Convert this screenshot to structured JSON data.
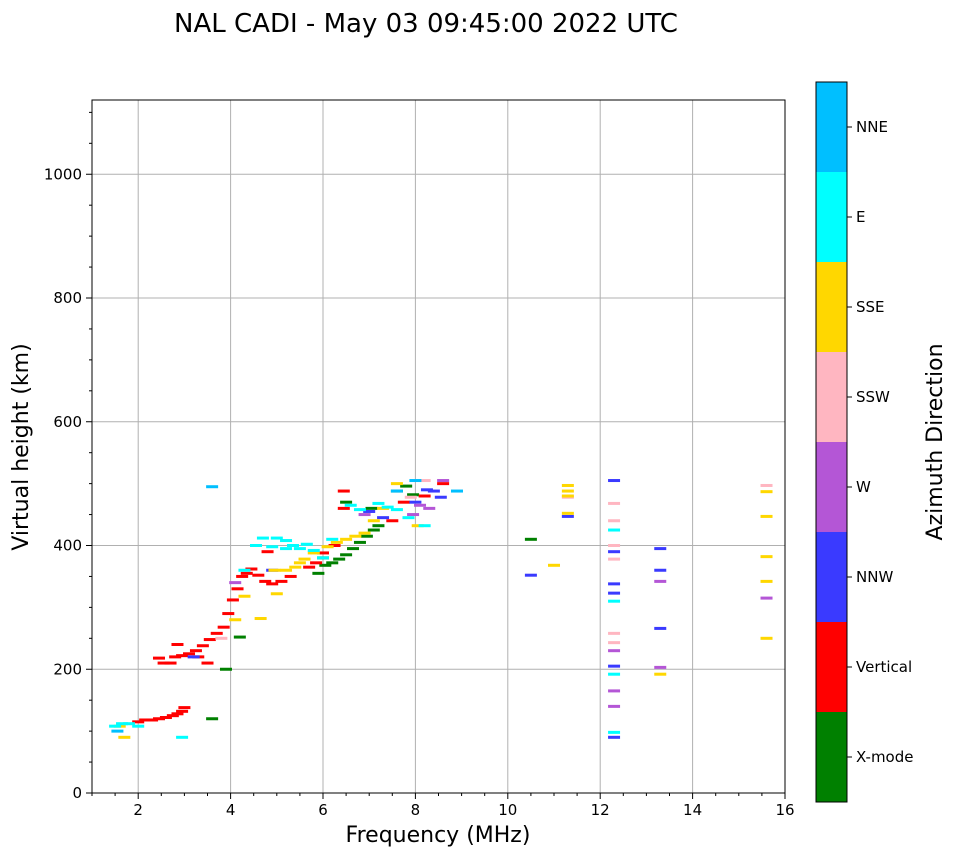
{
  "chart_data": {
    "type": "scatter",
    "title": "NAL CADI - May 03 09:45:00 2022 UTC",
    "xlabel": "Frequency (MHz)",
    "ylabel": "Virtual height (km)",
    "xlim": [
      1,
      16
    ],
    "ylim": [
      0,
      1120
    ],
    "xticks": [
      2,
      4,
      6,
      8,
      10,
      12,
      14,
      16
    ],
    "yticks": [
      0,
      200,
      400,
      600,
      800,
      1000
    ],
    "grid": true,
    "colorbar": {
      "label": "Azimuth Direction",
      "categories": [
        {
          "name": "X-mode",
          "color": "#008000"
        },
        {
          "name": "Vertical",
          "color": "#ff0000"
        },
        {
          "name": "NNW",
          "color": "#3a3aff"
        },
        {
          "name": "W",
          "color": "#b456d6"
        },
        {
          "name": "SSW",
          "color": "#ffb6c1"
        },
        {
          "name": "SSE",
          "color": "#ffd700"
        },
        {
          "name": "E",
          "color": "#00ffff"
        },
        {
          "name": "NNE",
          "color": "#00bfff"
        }
      ]
    },
    "series": [
      {
        "name": "X-mode",
        "points": [
          [
            3.6,
            120
          ],
          [
            4.2,
            252
          ],
          [
            3.9,
            200
          ],
          [
            5.9,
            355
          ],
          [
            6.05,
            368
          ],
          [
            6.2,
            372
          ],
          [
            6.35,
            378
          ],
          [
            6.5,
            385
          ],
          [
            6.65,
            395
          ],
          [
            6.8,
            405
          ],
          [
            6.95,
            415
          ],
          [
            7.1,
            425
          ],
          [
            7.2,
            432
          ],
          [
            7.05,
            460
          ],
          [
            7.6,
            488
          ],
          [
            7.8,
            496
          ],
          [
            6.5,
            470
          ],
          [
            7.95,
            482
          ],
          [
            10.5,
            410
          ],
          [
            6.0,
            380
          ]
        ]
      },
      {
        "name": "Vertical",
        "points": [
          [
            2.0,
            115
          ],
          [
            2.15,
            118
          ],
          [
            2.3,
            118
          ],
          [
            2.45,
            120
          ],
          [
            2.6,
            122
          ],
          [
            2.75,
            125
          ],
          [
            2.85,
            128
          ],
          [
            2.95,
            132
          ],
          [
            3.0,
            138
          ],
          [
            2.45,
            218
          ],
          [
            2.55,
            210
          ],
          [
            2.7,
            210
          ],
          [
            2.8,
            220
          ],
          [
            2.85,
            240
          ],
          [
            2.95,
            222
          ],
          [
            3.1,
            225
          ],
          [
            3.25,
            230
          ],
          [
            3.4,
            238
          ],
          [
            3.55,
            248
          ],
          [
            3.7,
            258
          ],
          [
            3.85,
            268
          ],
          [
            3.95,
            290
          ],
          [
            4.05,
            312
          ],
          [
            4.15,
            330
          ],
          [
            4.25,
            350
          ],
          [
            4.35,
            355
          ],
          [
            4.45,
            362
          ],
          [
            4.6,
            352
          ],
          [
            4.75,
            342
          ],
          [
            4.9,
            338
          ],
          [
            5.1,
            342
          ],
          [
            5.3,
            350
          ],
          [
            4.8,
            390
          ],
          [
            5.7,
            365
          ],
          [
            5.85,
            372
          ],
          [
            6.0,
            388
          ],
          [
            6.25,
            400
          ],
          [
            6.45,
            460
          ],
          [
            6.45,
            488
          ],
          [
            7.5,
            440
          ],
          [
            7.75,
            470
          ],
          [
            8.6,
            500
          ],
          [
            8.2,
            480
          ],
          [
            3.5,
            210
          ],
          [
            3.3,
            220
          ]
        ]
      },
      {
        "name": "NNW",
        "points": [
          [
            3.2,
            220
          ],
          [
            8.25,
            490
          ],
          [
            8.4,
            488
          ],
          [
            8.55,
            478
          ],
          [
            7.0,
            455
          ],
          [
            7.3,
            445
          ],
          [
            8.0,
            470
          ],
          [
            12.3,
            505
          ],
          [
            12.3,
            390
          ],
          [
            12.3,
            338
          ],
          [
            12.3,
            323
          ],
          [
            12.3,
            205
          ],
          [
            12.3,
            90
          ],
          [
            13.3,
            395
          ],
          [
            13.3,
            360
          ],
          [
            13.3,
            266
          ],
          [
            11.3,
            447
          ],
          [
            10.5,
            352
          ],
          [
            4.9,
            360
          ]
        ]
      },
      {
        "name": "W",
        "points": [
          [
            8.1,
            465
          ],
          [
            8.3,
            460
          ],
          [
            7.95,
            450
          ],
          [
            8.6,
            505
          ],
          [
            6.9,
            450
          ],
          [
            12.3,
            230
          ],
          [
            12.3,
            165
          ],
          [
            12.3,
            140
          ],
          [
            13.3,
            342
          ],
          [
            13.3,
            203
          ],
          [
            15.6,
            315
          ],
          [
            4.1,
            340
          ]
        ]
      },
      {
        "name": "SSW",
        "points": [
          [
            12.3,
            468
          ],
          [
            12.3,
            440
          ],
          [
            12.3,
            400
          ],
          [
            12.3,
            378
          ],
          [
            12.3,
            258
          ],
          [
            12.3,
            243
          ],
          [
            11.3,
            478
          ],
          [
            15.6,
            497
          ],
          [
            7.9,
            478
          ],
          [
            8.2,
            505
          ],
          [
            3.8,
            250
          ]
        ]
      },
      {
        "name": "SSE",
        "points": [
          [
            1.6,
            108
          ],
          [
            1.7,
            90
          ],
          [
            4.1,
            280
          ],
          [
            4.3,
            318
          ],
          [
            4.65,
            282
          ],
          [
            5.0,
            322
          ],
          [
            4.95,
            360
          ],
          [
            5.2,
            360
          ],
          [
            5.4,
            365
          ],
          [
            5.5,
            372
          ],
          [
            5.6,
            378
          ],
          [
            5.8,
            388
          ],
          [
            6.1,
            398
          ],
          [
            6.3,
            405
          ],
          [
            6.5,
            410
          ],
          [
            6.7,
            415
          ],
          [
            6.9,
            420
          ],
          [
            7.1,
            440
          ],
          [
            7.3,
            460
          ],
          [
            7.6,
            500
          ],
          [
            8.05,
            432
          ],
          [
            11.0,
            368
          ],
          [
            11.3,
            497
          ],
          [
            11.3,
            488
          ],
          [
            11.3,
            480
          ],
          [
            11.3,
            452
          ],
          [
            13.3,
            192
          ],
          [
            15.6,
            487
          ],
          [
            15.6,
            447
          ],
          [
            15.6,
            382
          ],
          [
            15.6,
            342
          ],
          [
            15.6,
            250
          ]
        ]
      },
      {
        "name": "E",
        "points": [
          [
            1.5,
            108
          ],
          [
            1.65,
            112
          ],
          [
            1.8,
            112
          ],
          [
            2.0,
            108
          ],
          [
            2.95,
            90
          ],
          [
            4.55,
            400
          ],
          [
            4.7,
            412
          ],
          [
            4.9,
            398
          ],
          [
            5.0,
            412
          ],
          [
            5.2,
            408
          ],
          [
            5.35,
            400
          ],
          [
            5.5,
            395
          ],
          [
            5.65,
            402
          ],
          [
            5.8,
            392
          ],
          [
            6.0,
            380
          ],
          [
            6.2,
            410
          ],
          [
            6.6,
            465
          ],
          [
            6.8,
            458
          ],
          [
            7.2,
            468
          ],
          [
            7.4,
            462
          ],
          [
            7.6,
            458
          ],
          [
            7.85,
            445
          ],
          [
            8.2,
            432
          ],
          [
            12.3,
            425
          ],
          [
            12.3,
            310
          ],
          [
            12.3,
            192
          ],
          [
            12.3,
            98
          ],
          [
            4.3,
            360
          ],
          [
            5.2,
            395
          ]
        ]
      },
      {
        "name": "NNE",
        "points": [
          [
            3.6,
            495
          ],
          [
            1.55,
            100
          ],
          [
            7.6,
            488
          ],
          [
            8.9,
            488
          ],
          [
            8.0,
            505
          ]
        ]
      }
    ]
  }
}
